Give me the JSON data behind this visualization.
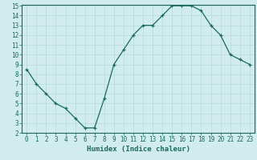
{
  "x": [
    0,
    1,
    2,
    3,
    4,
    5,
    6,
    7,
    8,
    9,
    10,
    11,
    12,
    13,
    14,
    15,
    16,
    17,
    18,
    19,
    20,
    21,
    22,
    23
  ],
  "y": [
    8.5,
    7.0,
    6.0,
    5.0,
    4.5,
    3.5,
    2.5,
    2.5,
    5.5,
    9.0,
    10.5,
    12.0,
    13.0,
    13.0,
    14.0,
    15.0,
    15.0,
    15.0,
    14.5,
    13.0,
    12.0,
    10.0,
    9.5,
    9.0
  ],
  "line_color": "#1a6b5a",
  "marker": "+",
  "bg_color": "#d0ecec",
  "grid_color": "#b8d8d8",
  "xlabel": "Humidex (Indice chaleur)",
  "xlim_min": -0.5,
  "xlim_max": 23.5,
  "ylim_min": 2,
  "ylim_max": 15,
  "yticks": [
    2,
    3,
    4,
    5,
    6,
    7,
    8,
    9,
    10,
    11,
    12,
    13,
    14,
    15
  ],
  "xticks": [
    0,
    1,
    2,
    3,
    4,
    5,
    6,
    7,
    8,
    9,
    10,
    11,
    12,
    13,
    14,
    15,
    16,
    17,
    18,
    19,
    20,
    21,
    22,
    23
  ],
  "tick_color": "#1a6b5a",
  "label_color": "#1a6b5a",
  "font_size": 5.5,
  "xlabel_fontsize": 6.5
}
